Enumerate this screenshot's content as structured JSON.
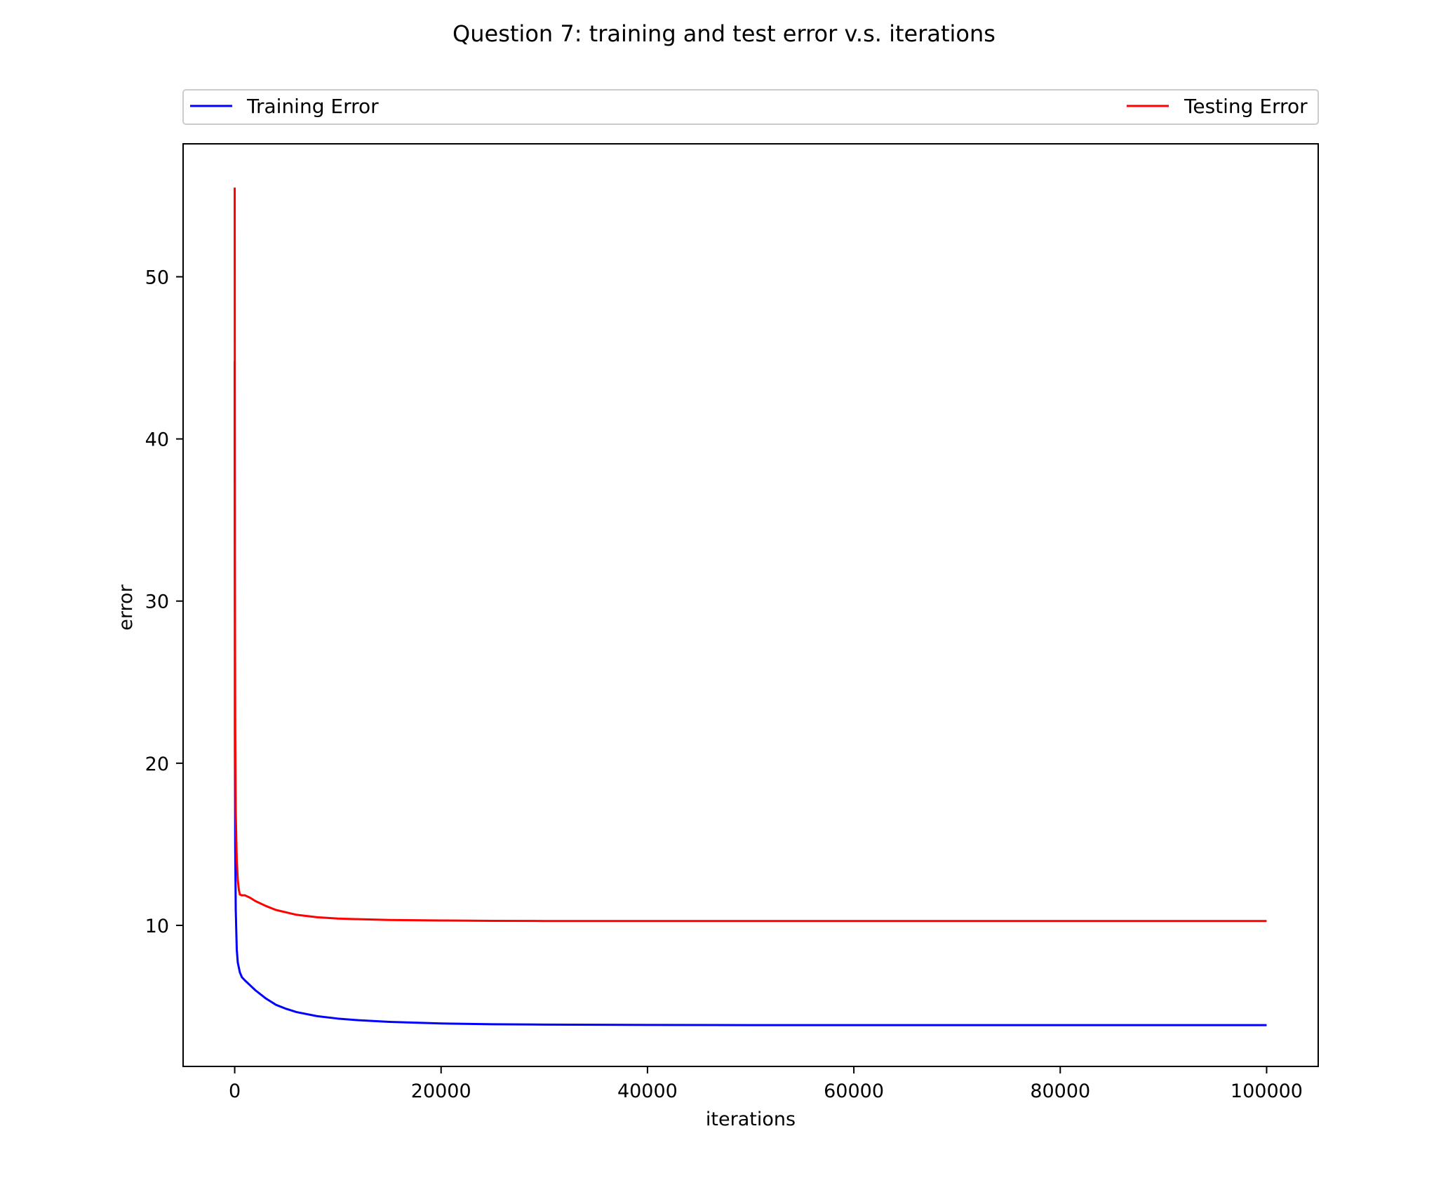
{
  "chart_data": {
    "type": "line",
    "title": "Question 7: training and test error v.s. iterations",
    "xlabel": "iterations",
    "ylabel": "error",
    "xlim": [
      -5000,
      105000
    ],
    "ylim": [
      1.3,
      58.2
    ],
    "xticks": [
      {
        "value": 0,
        "label": "0"
      },
      {
        "value": 20000,
        "label": "20000"
      },
      {
        "value": 40000,
        "label": "40000"
      },
      {
        "value": 60000,
        "label": "60000"
      },
      {
        "value": 80000,
        "label": "80000"
      },
      {
        "value": 100000,
        "label": "100000"
      }
    ],
    "yticks": [
      {
        "value": 10,
        "label": "10"
      },
      {
        "value": 20,
        "label": "20"
      },
      {
        "value": 30,
        "label": "30"
      },
      {
        "value": 40,
        "label": "40"
      },
      {
        "value": 50,
        "label": "50"
      }
    ],
    "grid": false,
    "legend": {
      "placement": "top-expanded-above-plot",
      "entries": [
        "Training Error",
        "Testing Error"
      ]
    },
    "series": [
      {
        "name": "Training Error",
        "color": "#0000ff",
        "x": [
          0,
          20,
          50,
          100,
          200,
          300,
          500,
          700,
          1000,
          1500,
          2000,
          3000,
          4000,
          5000,
          6000,
          8000,
          10000,
          12000,
          15000,
          20000,
          25000,
          30000,
          40000,
          50000,
          60000,
          70000,
          80000,
          90000,
          100000
        ],
        "y": [
          44.8,
          22.0,
          15.0,
          11.0,
          8.5,
          7.7,
          7.1,
          6.8,
          6.6,
          6.3,
          6.0,
          5.5,
          5.1,
          4.85,
          4.65,
          4.4,
          4.25,
          4.15,
          4.05,
          3.95,
          3.9,
          3.88,
          3.86,
          3.85,
          3.85,
          3.85,
          3.85,
          3.85,
          3.85
        ]
      },
      {
        "name": "Testing Error",
        "color": "#ff0000",
        "x": [
          0,
          20,
          50,
          100,
          200,
          300,
          400,
          500,
          700,
          1000,
          1500,
          2000,
          3000,
          4000,
          5000,
          6000,
          8000,
          10000,
          12000,
          15000,
          20000,
          25000,
          30000,
          40000,
          50000,
          60000,
          70000,
          80000,
          90000,
          100000
        ],
        "y": [
          55.5,
          32.0,
          22.0,
          17.0,
          14.0,
          12.8,
          12.2,
          11.9,
          11.85,
          11.85,
          11.7,
          11.5,
          11.2,
          10.95,
          10.8,
          10.65,
          10.5,
          10.42,
          10.38,
          10.33,
          10.3,
          10.28,
          10.27,
          10.27,
          10.27,
          10.27,
          10.27,
          10.27,
          10.27,
          10.27
        ]
      }
    ]
  }
}
